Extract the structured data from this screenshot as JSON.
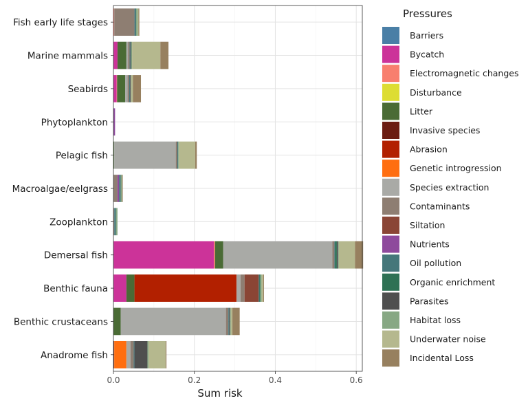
{
  "chart_data": {
    "type": "bar",
    "orientation": "horizontal",
    "stacked": true,
    "xlabel": "Sum risk",
    "ylabel": "",
    "xlim": [
      0,
      0.615
    ],
    "x_ticks": [
      "0.0",
      "0.2",
      "0.4",
      "0.6"
    ],
    "x_tick_values": [
      0,
      0.2,
      0.4,
      0.6
    ],
    "grid": true,
    "legend_title": "Pressures",
    "legend_position": "right",
    "categories": [
      "Fish early life stages",
      "Marine mammals",
      "Seabirds",
      "Phytoplankton",
      "Pelagic fish",
      "Macroalgae/eelgrass",
      "Zooplankton",
      "Demersal fish",
      "Benthic fauna",
      "Benthic crustaceans",
      "Anadrome fish"
    ],
    "series": [
      {
        "name": "Barriers",
        "color": "#4a7fa6",
        "values": [
          0,
          0,
          0,
          0,
          0,
          0,
          0,
          0,
          0,
          0,
          0
        ]
      },
      {
        "name": "Bycatch",
        "color": "#cc3399",
        "values": [
          0,
          0.01,
          0.008,
          0,
          0,
          0,
          0,
          0.248,
          0.032,
          0,
          0
        ]
      },
      {
        "name": "Electromagnetic changes",
        "color": "#f87f6e",
        "values": [
          0.002,
          0,
          0.001,
          0,
          0,
          0,
          0,
          0.003,
          0,
          0,
          0
        ]
      },
      {
        "name": "Disturbance",
        "color": "#dddd33",
        "values": [
          0,
          0,
          0,
          0,
          0,
          0,
          0,
          0,
          0,
          0,
          0
        ]
      },
      {
        "name": "Litter",
        "color": "#4a6b35",
        "values": [
          0,
          0.022,
          0.02,
          0,
          0.002,
          0,
          0,
          0.02,
          0.02,
          0.018,
          0
        ]
      },
      {
        "name": "Invasive species",
        "color": "#6b1c12",
        "values": [
          0,
          0,
          0,
          0,
          0,
          0,
          0,
          0,
          0,
          0,
          0.002
        ]
      },
      {
        "name": "Abrasion",
        "color": "#b22000",
        "values": [
          0,
          0,
          0,
          0,
          0,
          0,
          0,
          0,
          0.252,
          0,
          0
        ]
      },
      {
        "name": "Genetic introgression",
        "color": "#ff6e10",
        "values": [
          0,
          0,
          0,
          0,
          0,
          0,
          0,
          0,
          0,
          0,
          0.03
        ]
      },
      {
        "name": "Species extraction",
        "color": "#a9aaa6",
        "values": [
          0,
          0.004,
          0.006,
          0,
          0.152,
          0,
          0,
          0.27,
          0.01,
          0.26,
          0.01
        ]
      },
      {
        "name": "Contaminants",
        "color": "#8e7e72",
        "values": [
          0.05,
          0.004,
          0.004,
          0,
          0.004,
          0.01,
          0.002,
          0.005,
          0.01,
          0.006,
          0.008
        ]
      },
      {
        "name": "Siltation",
        "color": "#8a4535",
        "values": [
          0,
          0,
          0,
          0,
          0,
          0,
          0,
          0,
          0.035,
          0,
          0
        ]
      },
      {
        "name": "Nutrients",
        "color": "#8e4a9c",
        "values": [
          0,
          0,
          0,
          0.004,
          0,
          0.004,
          0,
          0,
          0,
          0,
          0
        ]
      },
      {
        "name": "Oil pollution",
        "color": "#45777a",
        "values": [
          0.004,
          0.002,
          0.002,
          0,
          0.002,
          0.004,
          0.004,
          0.002,
          0.002,
          0.002,
          0.002
        ]
      },
      {
        "name": "Organic enrichment",
        "color": "#2e7154",
        "values": [
          0,
          0,
          0,
          0,
          0,
          0,
          0,
          0.004,
          0.002,
          0,
          0
        ]
      },
      {
        "name": "Parasites",
        "color": "#4f4f4f",
        "values": [
          0,
          0.002,
          0.002,
          0,
          0,
          0,
          0,
          0.003,
          0,
          0.002,
          0.032
        ]
      },
      {
        "name": "Habitat loss",
        "color": "#87a884",
        "values": [
          0.004,
          0.002,
          0.001,
          0,
          0.002,
          0.003,
          0.004,
          0.002,
          0.003,
          0.002,
          0.003
        ]
      },
      {
        "name": "Underwater noise",
        "color": "#b5b88e",
        "values": [
          0.002,
          0.07,
          0.004,
          0,
          0.04,
          0,
          0,
          0.04,
          0.004,
          0.004,
          0.042
        ]
      },
      {
        "name": "Incidental Loss",
        "color": "#97805f",
        "values": [
          0.002,
          0.02,
          0.02,
          0,
          0.004,
          0.002,
          0,
          0.02,
          0.002,
          0.018,
          0.002
        ]
      }
    ]
  }
}
